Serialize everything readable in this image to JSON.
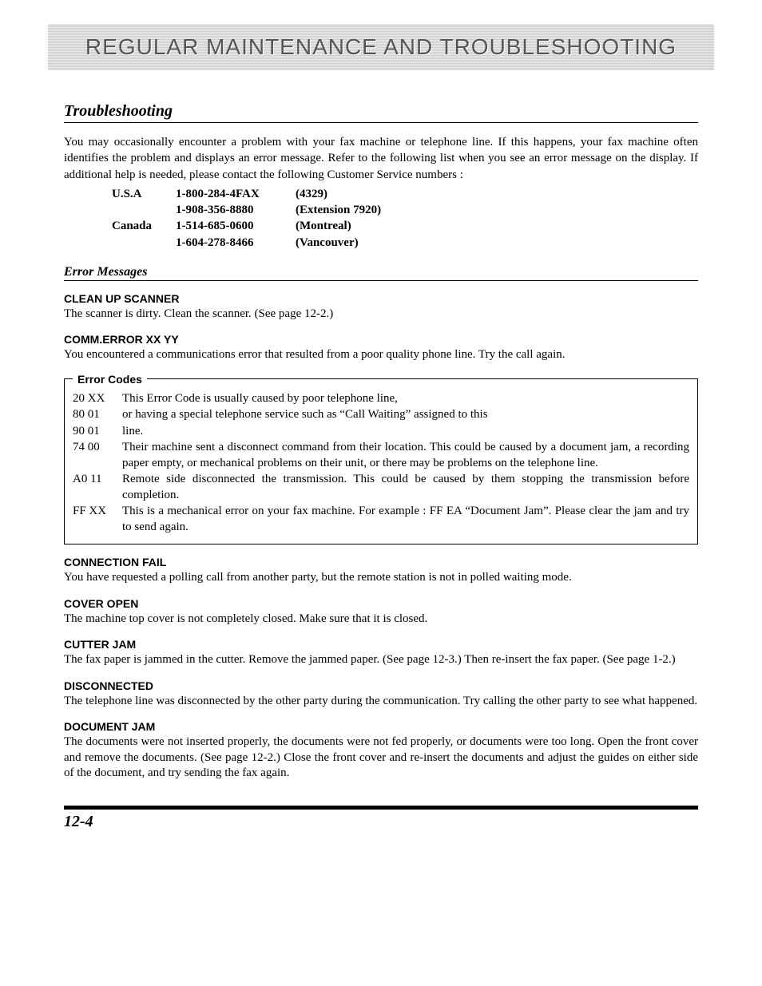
{
  "header": {
    "title": "REGULAR MAINTENANCE AND TROUBLESHOOTING"
  },
  "section": {
    "title": "Troubleshooting",
    "intro": "You may occasionally encounter a problem with your fax machine or telephone line. If this happens, your fax machine often identifies the problem and displays an error message. Refer to the following list when you see an error message on the display. If additional help is needed, please contact the following Customer Service numbers :"
  },
  "contacts": [
    {
      "country": "U.S.A",
      "phone": "1-800-284-4FAX",
      "note": "(4329)"
    },
    {
      "country": "",
      "phone": "1-908-356-8880",
      "note": "(Extension 7920)"
    },
    {
      "country": "Canada",
      "phone": "1-514-685-0600",
      "note": "(Montreal)"
    },
    {
      "country": "",
      "phone": "1-604-278-8466",
      "note": "(Vancouver)"
    }
  ],
  "error_messages_heading": "Error Messages",
  "errors": [
    {
      "title": "CLEAN UP SCANNER",
      "body": "The scanner is dirty. Clean the scanner. (See page 12-2.)"
    },
    {
      "title": "COMM.ERROR XX YY",
      "body": "You encountered a communications error that resulted from a poor quality phone line. Try the call again."
    }
  ],
  "error_codes": {
    "legend": "Error Codes",
    "rows": [
      {
        "code": "20 XX",
        "desc": "This Error Code is usually caused by poor telephone line,"
      },
      {
        "code": "80 01",
        "desc": "or having a special telephone service such as “Call Waiting” assigned to this"
      },
      {
        "code": "90 01",
        "desc": "line."
      },
      {
        "code": "74 00",
        "desc": "Their machine sent a disconnect command from their location.  This could be caused by a document jam, a recording paper empty, or mechanical problems on their unit, or there may be problems on the telephone line."
      },
      {
        "code": "A0 11",
        "desc": "Remote side disconnected the transmission.  This could be caused by them stopping the transmission before completion."
      },
      {
        "code": "FF XX",
        "desc": "This is a mechanical error on your fax machine.  For example : FF EA “Document Jam”.  Please clear the jam and try to send again."
      }
    ]
  },
  "errors2": [
    {
      "title": "CONNECTION FAIL",
      "body": "You have requested a polling call from another party, but the remote station is not in polled waiting mode."
    },
    {
      "title": "COVER OPEN",
      "body": "The machine top cover is not completely closed. Make sure that it is closed."
    },
    {
      "title": "CUTTER JAM",
      "body": "The fax paper is jammed in the cutter. Remove the jammed paper. (See page 12-3.) Then re-insert the fax paper. (See page 1-2.)"
    },
    {
      "title": "DISCONNECTED",
      "body": "The telephone line was disconnected by the other party during the communication. Try calling the other party to see what happened."
    },
    {
      "title": "DOCUMENT JAM",
      "body": "The documents were not inserted properly, the documents were not fed properly, or documents were too long.  Open the front cover and remove the documents. (See page 12-2.) Close the front cover and re-insert the documents and adjust the guides on either side of the document, and try sending the fax again."
    }
  ],
  "page_number": "12-4"
}
